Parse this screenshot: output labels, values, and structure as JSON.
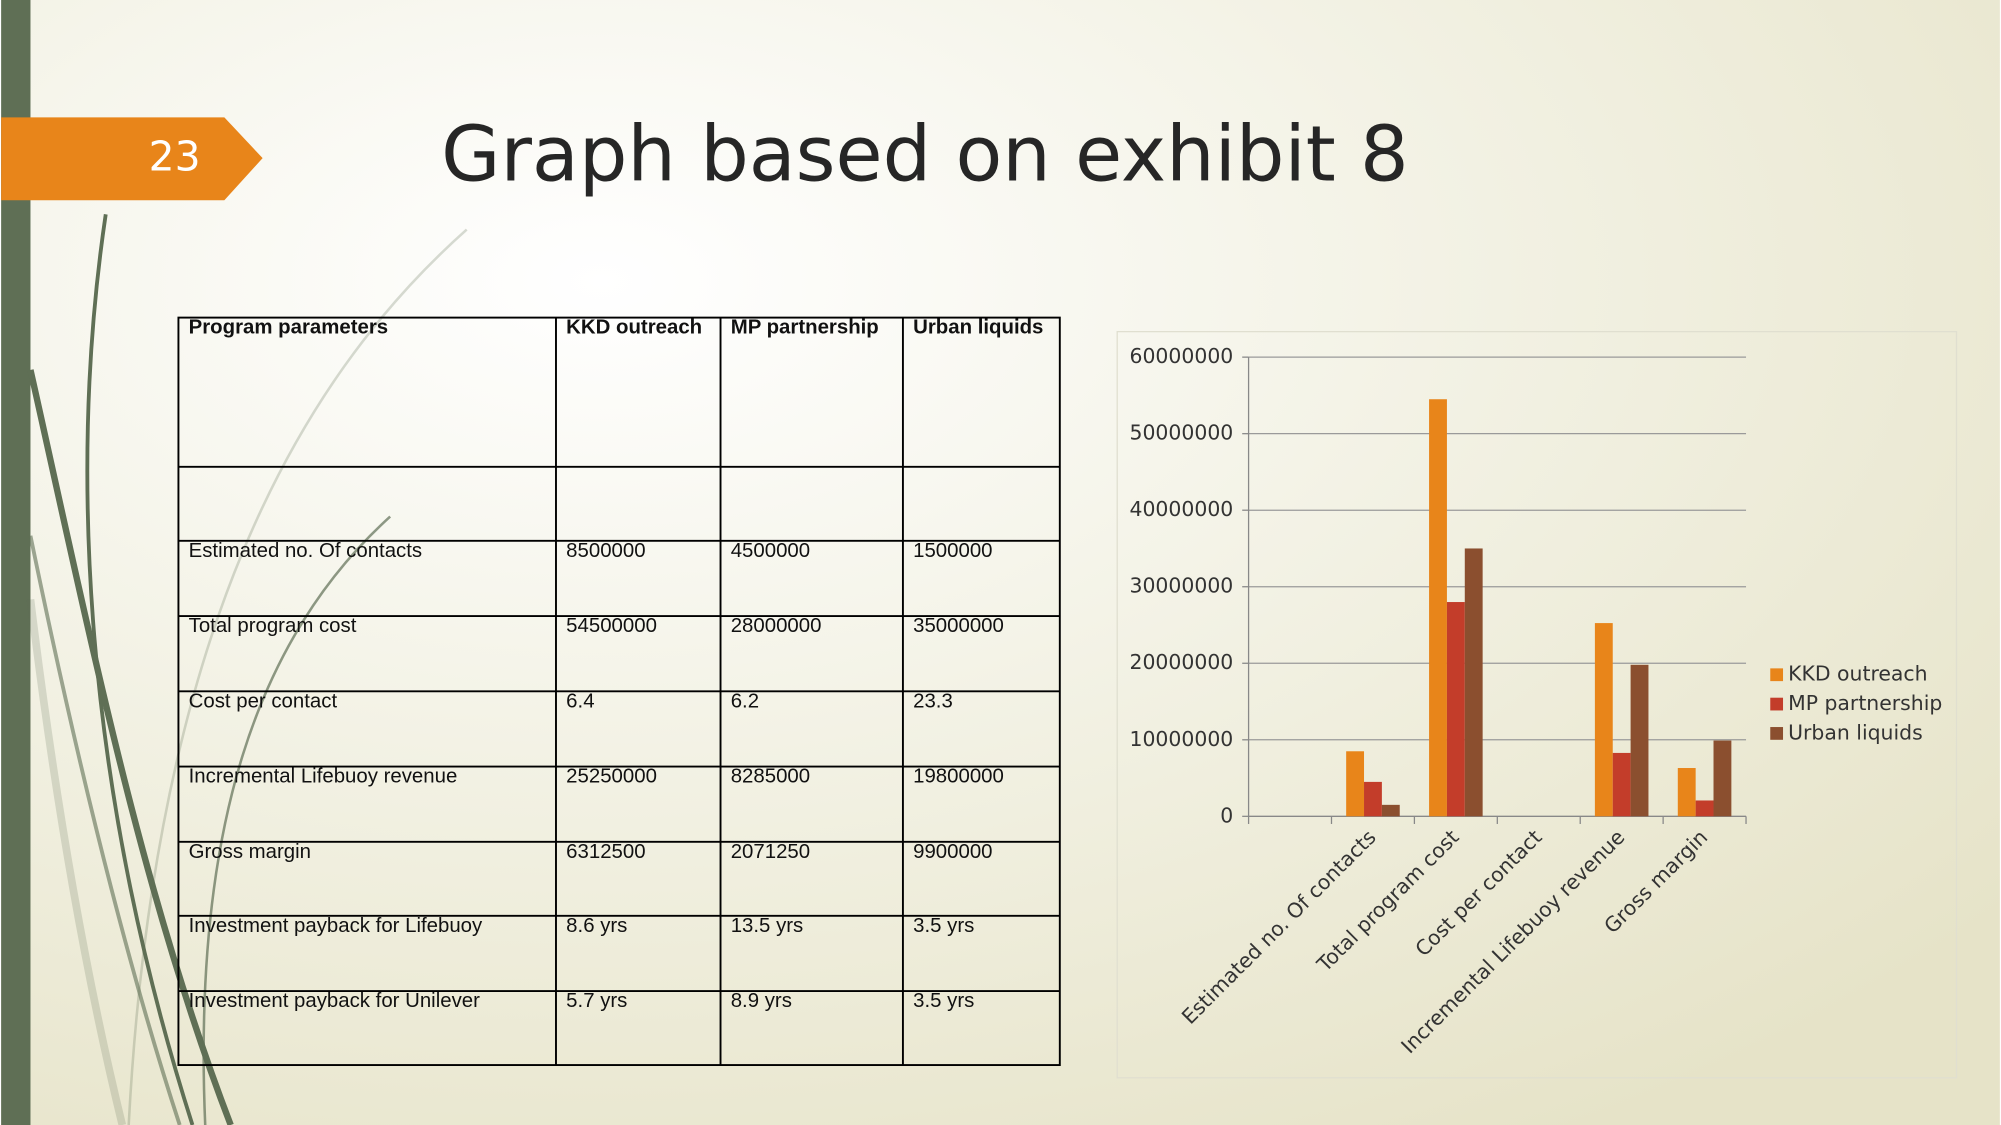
{
  "slide_number": "23",
  "title": "Graph based on exhibit 8",
  "table": {
    "header": [
      "Program parameters",
      "KKD outreach",
      "MP partnership",
      "Urban liquids"
    ],
    "rows": [
      [
        "Estimated no. Of contacts",
        "8500000",
        "4500000",
        "1500000"
      ],
      [
        "Total program cost",
        "54500000",
        "28000000",
        "35000000"
      ],
      [
        "Cost per contact",
        "6.4",
        "6.2",
        "23.3"
      ],
      [
        "Incremental Lifebuoy revenue",
        "25250000",
        "8285000",
        "19800000"
      ],
      [
        "Gross margin",
        "6312500",
        "2071250",
        "9900000"
      ],
      [
        "Investment payback for Lifebuoy",
        "8.6 yrs",
        "13.5 yrs",
        "3.5 yrs"
      ],
      [
        "Investment payback for Unilever",
        "5.7 yrs",
        "8.9 yrs",
        "3.5 yrs"
      ]
    ]
  },
  "chart_data": {
    "type": "bar",
    "categories": [
      null,
      "Estimated no. Of contacts",
      "Total program cost",
      "Cost per contact",
      "Incremental Lifebuoy revenue",
      "Gross margin"
    ],
    "series": [
      {
        "name": "KKD outreach",
        "color": "#e8851a",
        "values": [
          null,
          8500000,
          54500000,
          6.4,
          25250000,
          6312500
        ]
      },
      {
        "name": "MP partnership",
        "color": "#c33d2a",
        "values": [
          null,
          4500000,
          28000000,
          6.2,
          8285000,
          2071250
        ]
      },
      {
        "name": "Urban liquids",
        "color": "#8b4f2f",
        "values": [
          null,
          1500000,
          35000000,
          23.3,
          19800000,
          9900000
        ]
      }
    ],
    "ylim": [
      0,
      60000000
    ],
    "yticks": [
      0,
      10000000,
      20000000,
      30000000,
      40000000,
      50000000,
      60000000
    ],
    "grid": true,
    "legend": "right"
  }
}
